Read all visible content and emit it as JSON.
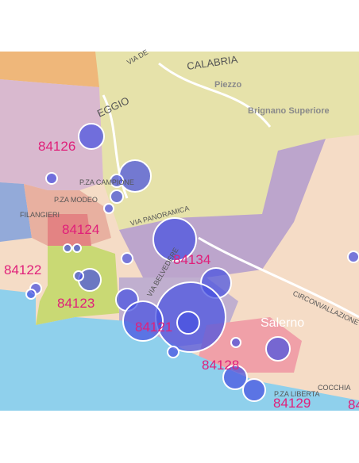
{
  "map": {
    "postal_codes": [
      "84126",
      "84124",
      "84122",
      "84123",
      "84121",
      "84134",
      "84128",
      "84129",
      "84"
    ],
    "places": [
      "CALABRIA",
      "Piezzo",
      "Brignano Superiore",
      "Salerno"
    ],
    "streets": [
      "VIA PANORAMICA",
      "VIA BELVEDERE",
      "CIRCONVALLAZIONE",
      "P.ZA CAMPIONE",
      "P.ZA MODEO",
      "FILANGIERI",
      "P.ZA LIBERTA",
      "COCCHIA",
      "EGGIO",
      "VIA DE"
    ]
  }
}
